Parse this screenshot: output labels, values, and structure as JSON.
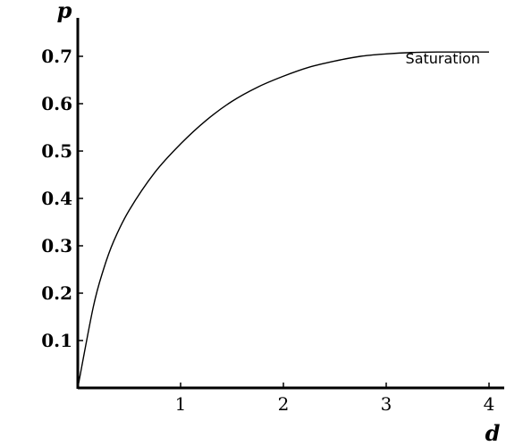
{
  "chart_data": {
    "type": "line",
    "title": "",
    "xlabel": "d",
    "ylabel": "p",
    "xlim": [
      0,
      4.1
    ],
    "ylim": [
      0,
      0.78
    ],
    "x_ticks": [
      1,
      2,
      3,
      4
    ],
    "x_tick_labels": [
      "1",
      "2",
      "3",
      "4"
    ],
    "y_ticks": [
      0.1,
      0.2,
      0.3,
      0.4,
      0.5,
      0.6,
      0.7
    ],
    "y_tick_labels": [
      "0.1",
      "0.2",
      "0.3",
      "0.4",
      "0.5",
      "0.6",
      "0.7"
    ],
    "grid": false,
    "legend": "none",
    "series": [
      {
        "x": [
          0,
          0.15,
          0.25,
          0.35,
          0.5,
          0.75,
          1.0,
          1.25,
          1.5,
          1.75,
          2.0,
          2.25,
          2.5,
          2.75,
          3.0,
          3.25,
          3.5,
          3.75,
          4.0
        ],
        "y": [
          0,
          0.17,
          0.25,
          0.31,
          0.375,
          0.455,
          0.515,
          0.565,
          0.605,
          0.635,
          0.658,
          0.677,
          0.69,
          0.7,
          0.705,
          0.708,
          0.709,
          0.709,
          0.709
        ]
      }
    ],
    "annotations": [
      {
        "text": "Saturation",
        "x": 3.55,
        "y": 0.685
      }
    ]
  }
}
